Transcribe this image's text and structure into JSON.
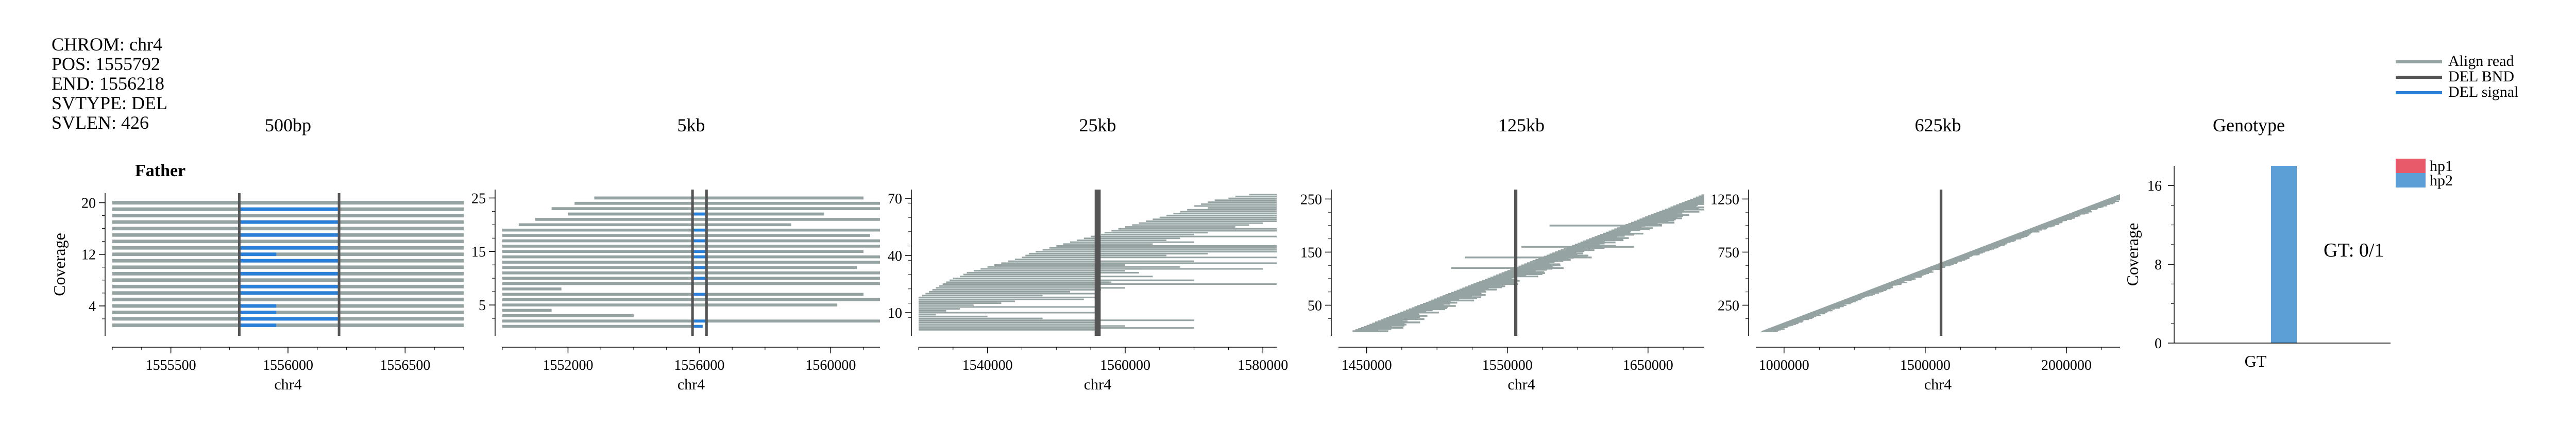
{
  "info": [
    "CHROM: chr4",
    "POS: 1555792",
    "END: 1556218",
    "SVTYPE: DEL",
    "SVLEN: 426"
  ],
  "sample_label": "Father",
  "legend": {
    "align_read": "Align read",
    "del_bnd": "DEL BND",
    "del_signal": "DEL signal",
    "colors": {
      "read": "#95a3a2",
      "bnd": "#555555",
      "signal": "#2a7fd6"
    }
  },
  "hp_legend": [
    {
      "label": "hp1",
      "color": "#e8596a"
    },
    {
      "label": "hp2",
      "color": "#5b9fd6"
    }
  ],
  "chart_data": [
    {
      "type": "scatter",
      "title": "500bp",
      "xlabel": "chr4",
      "ylabel": "Coverage",
      "xlim": [
        1555250,
        1556750
      ],
      "ylim": [
        0,
        21
      ],
      "xticks": [
        1555500,
        1556000,
        1556500
      ],
      "yticks": [
        4,
        12,
        20
      ],
      "bnd": [
        1555792,
        1556218
      ],
      "reads": [
        {
          "y": 20,
          "start": 1555250,
          "end": 1556750
        },
        {
          "y": 19,
          "start": 1555250,
          "end": 1556750,
          "sig": [
            1555792,
            1556218
          ]
        },
        {
          "y": 18,
          "start": 1555250,
          "end": 1556750
        },
        {
          "y": 17,
          "start": 1555250,
          "end": 1556750,
          "sig": [
            1555792,
            1556218
          ]
        },
        {
          "y": 16,
          "start": 1555250,
          "end": 1556750
        },
        {
          "y": 15,
          "start": 1555250,
          "end": 1556750,
          "sig": [
            1555792,
            1556218
          ]
        },
        {
          "y": 14,
          "start": 1555250,
          "end": 1556750
        },
        {
          "y": 13,
          "start": 1555250,
          "end": 1556750,
          "sig": [
            1555792,
            1556218
          ]
        },
        {
          "y": 12,
          "start": 1555250,
          "end": 1556750,
          "sig": [
            1555792,
            1555950
          ]
        },
        {
          "y": 11,
          "start": 1555250,
          "end": 1556750,
          "sig": [
            1555792,
            1556218
          ]
        },
        {
          "y": 10,
          "start": 1555250,
          "end": 1556750
        },
        {
          "y": 9,
          "start": 1555250,
          "end": 1556750,
          "sig": [
            1555792,
            1556218
          ]
        },
        {
          "y": 8,
          "start": 1555250,
          "end": 1556750
        },
        {
          "y": 7,
          "start": 1555250,
          "end": 1556750,
          "sig": [
            1555792,
            1556218
          ]
        },
        {
          "y": 6,
          "start": 1555250,
          "end": 1556750,
          "sig": [
            1555792,
            1556218
          ]
        },
        {
          "y": 5,
          "start": 1555250,
          "end": 1556750
        },
        {
          "y": 4,
          "start": 1555250,
          "end": 1556750,
          "sig": [
            1555792,
            1555950
          ]
        },
        {
          "y": 3,
          "start": 1555250,
          "end": 1556750,
          "sig": [
            1555792,
            1555950
          ]
        },
        {
          "y": 2,
          "start": 1555250,
          "end": 1556750,
          "sig": [
            1555792,
            1556218
          ]
        },
        {
          "y": 1,
          "start": 1555250,
          "end": 1556750,
          "sig": [
            1555792,
            1555950
          ]
        }
      ]
    },
    {
      "type": "scatter",
      "title": "5kb",
      "xlabel": "chr4",
      "xlim": [
        1550000,
        1561500
      ],
      "ylim": [
        0,
        26
      ],
      "xticks": [
        1552000,
        1556000,
        1560000
      ],
      "yticks": [
        5,
        15,
        25
      ],
      "bnd": [
        1555792,
        1556218
      ],
      "reads": [
        {
          "y": 25,
          "start": 1552800,
          "end": 1561000
        },
        {
          "y": 24,
          "start": 1552200,
          "end": 1561500
        },
        {
          "y": 23,
          "start": 1551500,
          "end": 1561500
        },
        {
          "y": 22,
          "start": 1552000,
          "end": 1559800,
          "sig": [
            1555792,
            1556218
          ]
        },
        {
          "y": 21,
          "start": 1551000,
          "end": 1561500
        },
        {
          "y": 20,
          "start": 1550500,
          "end": 1558800
        },
        {
          "y": 19,
          "start": 1550000,
          "end": 1561500,
          "sig": [
            1555792,
            1556218
          ]
        },
        {
          "y": 18,
          "start": 1550000,
          "end": 1561200
        },
        {
          "y": 17,
          "start": 1550000,
          "end": 1561500,
          "sig": [
            1555792,
            1556218
          ]
        },
        {
          "y": 16,
          "start": 1550000,
          "end": 1561500
        },
        {
          "y": 15,
          "start": 1550000,
          "end": 1561000,
          "sig": [
            1555792,
            1556218
          ]
        },
        {
          "y": 14,
          "start": 1550000,
          "end": 1561500,
          "sig": [
            1555792,
            1556218
          ]
        },
        {
          "y": 13,
          "start": 1550000,
          "end": 1561500
        },
        {
          "y": 12,
          "start": 1550000,
          "end": 1560800,
          "sig": [
            1555792,
            1556218
          ]
        },
        {
          "y": 11,
          "start": 1550000,
          "end": 1561500
        },
        {
          "y": 10,
          "start": 1550000,
          "end": 1561500,
          "sig": [
            1555792,
            1556218
          ]
        },
        {
          "y": 9,
          "start": 1550000,
          "end": 1561500
        },
        {
          "y": 8,
          "start": 1550000,
          "end": 1551800
        },
        {
          "y": 7,
          "start": 1550000,
          "end": 1561000,
          "sig": [
            1555792,
            1556218
          ]
        },
        {
          "y": 6,
          "start": 1550000,
          "end": 1561500
        },
        {
          "y": 5,
          "start": 1550000,
          "end": 1560200
        },
        {
          "y": 4,
          "start": 1550000,
          "end": 1551500
        },
        {
          "y": 3,
          "start": 1550000,
          "end": 1554000
        },
        {
          "y": 2,
          "start": 1550000,
          "end": 1561500,
          "sig": [
            1555792,
            1556218
          ]
        },
        {
          "y": 1,
          "start": 1550000,
          "end": 1556100,
          "sig": [
            1555792,
            1556100
          ]
        }
      ]
    },
    {
      "type": "scatter",
      "title": "25kb",
      "xlabel": "chr4",
      "xlim": [
        1530000,
        1582000
      ],
      "ylim": [
        0,
        73
      ],
      "xticks": [
        1540000,
        1560000,
        1580000
      ],
      "yticks": [
        10,
        40,
        70
      ],
      "bnd": [
        1555792,
        1556218
      ],
      "reads": [
        {
          "y": 72,
          "start": 1578000,
          "end": 1582000
        },
        {
          "y": 71,
          "start": 1576000,
          "end": 1582000
        },
        {
          "y": 70,
          "start": 1575000,
          "end": 1582000
        },
        {
          "y": 69,
          "start": 1573000,
          "end": 1582000
        },
        {
          "y": 68,
          "start": 1572000,
          "end": 1582000
        },
        {
          "y": 67,
          "start": 1571000,
          "end": 1582000
        },
        {
          "y": 66,
          "start": 1570000,
          "end": 1582000
        },
        {
          "y": 65,
          "start": 1572000,
          "end": 1582000
        },
        {
          "y": 64,
          "start": 1569000,
          "end": 1582000
        },
        {
          "y": 63,
          "start": 1568000,
          "end": 1582000
        },
        {
          "y": 62,
          "start": 1567000,
          "end": 1582000
        },
        {
          "y": 61,
          "start": 1566000,
          "end": 1582000
        },
        {
          "y": 60,
          "start": 1565000,
          "end": 1582000
        },
        {
          "y": 59,
          "start": 1564000,
          "end": 1582000
        },
        {
          "y": 58,
          "start": 1563000,
          "end": 1582000
        },
        {
          "y": 57,
          "start": 1562000,
          "end": 1580000
        },
        {
          "y": 56,
          "start": 1561000,
          "end": 1578000
        },
        {
          "y": 55,
          "start": 1560000,
          "end": 1576000
        },
        {
          "y": 54,
          "start": 1559000,
          "end": 1582000
        },
        {
          "y": 53,
          "start": 1558000,
          "end": 1582000
        },
        {
          "y": 52,
          "start": 1557000,
          "end": 1572000
        },
        {
          "y": 51,
          "start": 1556500,
          "end": 1570000
        },
        {
          "y": 50,
          "start": 1555000,
          "end": 1582000,
          "sig": [
            1555792,
            1556218
          ]
        },
        {
          "y": 49,
          "start": 1554000,
          "end": 1568000
        },
        {
          "y": 48,
          "start": 1553000,
          "end": 1566000
        },
        {
          "y": 47,
          "start": 1552000,
          "end": 1570000
        },
        {
          "y": 46,
          "start": 1551000,
          "end": 1564000
        },
        {
          "y": 45,
          "start": 1550000,
          "end": 1582000
        },
        {
          "y": 44,
          "start": 1549000,
          "end": 1582000
        },
        {
          "y": 43,
          "start": 1548000,
          "end": 1582000
        },
        {
          "y": 42,
          "start": 1547000,
          "end": 1582000,
          "sig": [
            1555792,
            1556218
          ]
        },
        {
          "y": 41,
          "start": 1546000,
          "end": 1572000
        },
        {
          "y": 40,
          "start": 1545500,
          "end": 1566000,
          "sig": [
            1555792,
            1556218
          ]
        },
        {
          "y": 39,
          "start": 1545000,
          "end": 1582000
        },
        {
          "y": 38,
          "start": 1544000,
          "end": 1556000
        },
        {
          "y": 37,
          "start": 1543000,
          "end": 1570000,
          "sig": [
            1555792,
            1556218
          ]
        },
        {
          "y": 36,
          "start": 1542000,
          "end": 1582000
        },
        {
          "y": 35,
          "start": 1541000,
          "end": 1560000
        },
        {
          "y": 34,
          "start": 1540000,
          "end": 1568000,
          "sig": [
            1555792,
            1556218
          ]
        },
        {
          "y": 33,
          "start": 1539000,
          "end": 1580000
        },
        {
          "y": 32,
          "start": 1538000,
          "end": 1560000
        },
        {
          "y": 31,
          "start": 1537000,
          "end": 1562000
        },
        {
          "y": 30,
          "start": 1536500,
          "end": 1556000
        },
        {
          "y": 29,
          "start": 1536000,
          "end": 1564000
        },
        {
          "y": 28,
          "start": 1535000,
          "end": 1556000
        },
        {
          "y": 27,
          "start": 1534500,
          "end": 1570000
        },
        {
          "y": 26,
          "start": 1534000,
          "end": 1558000
        },
        {
          "y": 25,
          "start": 1533500,
          "end": 1582000
        },
        {
          "y": 24,
          "start": 1533000,
          "end": 1556000
        },
        {
          "y": 23,
          "start": 1532500,
          "end": 1560000
        },
        {
          "y": 22,
          "start": 1532000,
          "end": 1556500
        },
        {
          "y": 21,
          "start": 1531500,
          "end": 1552000
        },
        {
          "y": 20,
          "start": 1531000,
          "end": 1556000
        },
        {
          "y": 19,
          "start": 1530500,
          "end": 1548000
        },
        {
          "y": 18,
          "start": 1530000,
          "end": 1556000
        },
        {
          "y": 17,
          "start": 1530000,
          "end": 1554000
        },
        {
          "y": 16,
          "start": 1530000,
          "end": 1544000
        },
        {
          "y": 15,
          "start": 1530000,
          "end": 1542000
        },
        {
          "y": 14,
          "start": 1530000,
          "end": 1538000
        },
        {
          "y": 13,
          "start": 1530000,
          "end": 1556000
        },
        {
          "y": 12,
          "start": 1530000,
          "end": 1536000
        },
        {
          "y": 11,
          "start": 1530000,
          "end": 1534000
        },
        {
          "y": 10,
          "start": 1530000,
          "end": 1556000
        },
        {
          "y": 9,
          "start": 1530000,
          "end": 1532500
        },
        {
          "y": 8,
          "start": 1530000,
          "end": 1540000
        },
        {
          "y": 7,
          "start": 1530000,
          "end": 1548000
        },
        {
          "y": 6,
          "start": 1530000,
          "end": 1570000
        },
        {
          "y": 5,
          "start": 1530000,
          "end": 1556000
        },
        {
          "y": 4,
          "start": 1530000,
          "end": 1556000,
          "sig": [
            1555792,
            1556218
          ]
        },
        {
          "y": 3,
          "start": 1530000,
          "end": 1560000
        },
        {
          "y": 2,
          "start": 1530000,
          "end": 1570000
        },
        {
          "y": 1,
          "start": 1530000,
          "end": 1556000
        }
      ]
    },
    {
      "type": "scatter",
      "title": "125kb",
      "xlabel": "chr4",
      "xlim": [
        1430000,
        1690000
      ],
      "ylim": [
        0,
        262
      ],
      "xticks": [
        1450000,
        1550000,
        1650000
      ],
      "yticks": [
        50,
        150,
        250
      ],
      "bnd": [
        1555792,
        1556218
      ],
      "diagonal_reads": {
        "count": 250,
        "x_from": 1440000,
        "x_to": 1690000,
        "len_min": 15000,
        "len_max": 32000,
        "long_reads": [
          [
            120,
            1510000,
            1590000
          ],
          [
            140,
            1520000,
            1610000
          ],
          [
            160,
            1560000,
            1640000
          ],
          [
            200,
            1580000,
            1660000
          ]
        ]
      }
    },
    {
      "type": "scatter",
      "title": "625kb",
      "xlabel": "chr4",
      "xlim": [
        900000,
        2190000
      ],
      "ylim": [
        0,
        1310
      ],
      "xticks": [
        1000000,
        1500000,
        2000000
      ],
      "yticks": [
        250,
        750,
        1250
      ],
      "bnd": [
        1555792,
        1556218
      ],
      "diagonal_reads": {
        "count": 1280,
        "x_from": 920000,
        "x_to": 2190000,
        "len_min": 20000,
        "len_max": 60000,
        "long_reads": []
      }
    },
    {
      "type": "bar",
      "title": "Genotype",
      "categories": [
        "GT"
      ],
      "ylabel": "Coverage",
      "ylim": [
        0,
        18
      ],
      "yticks": [
        0,
        8,
        16
      ],
      "series": [
        {
          "name": "hp1",
          "values": [
            0
          ]
        },
        {
          "name": "hp2",
          "values": [
            18
          ]
        }
      ],
      "annotation": "GT: 0/1"
    }
  ]
}
